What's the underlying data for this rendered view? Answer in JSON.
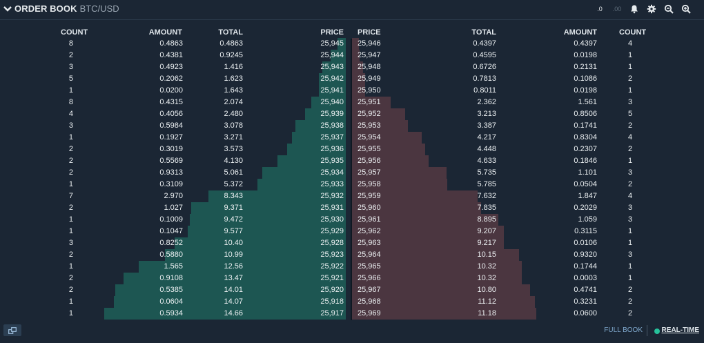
{
  "header": {
    "title": "ORDER BOOK",
    "pair": "BTC/USD",
    "tools": [
      {
        "name": "decrease-precision-button",
        "label": ".0"
      },
      {
        "name": "increase-precision-button",
        "label": ".00"
      },
      {
        "name": "bell-icon"
      },
      {
        "name": "gear-icon"
      },
      {
        "name": "zoom-out-icon"
      },
      {
        "name": "zoom-in-icon"
      }
    ]
  },
  "columns": {
    "bids": {
      "count": "COUNT",
      "amount": "AMOUNT",
      "total": "TOTAL",
      "price": "PRICE"
    },
    "asks": {
      "price": "PRICE",
      "total": "TOTAL",
      "amount": "AMOUNT",
      "count": "COUNT"
    }
  },
  "colors": {
    "bid_bar": "#1d5652",
    "ask_bar": "#4b3640",
    "background": "#1b2634"
  },
  "bids": [
    {
      "count": "8",
      "amount": "0.4863",
      "total": "0.4863",
      "price": "25,945"
    },
    {
      "count": "2",
      "amount": "0.4381",
      "total": "0.9245",
      "price": "25,944"
    },
    {
      "count": "3",
      "amount": "0.4923",
      "total": "1.416",
      "price": "25,943"
    },
    {
      "count": "5",
      "amount": "0.2062",
      "total": "1.623",
      "price": "25,942"
    },
    {
      "count": "1",
      "amount": "0.0200",
      "total": "1.643",
      "price": "25,941"
    },
    {
      "count": "8",
      "amount": "0.4315",
      "total": "2.074",
      "price": "25,940"
    },
    {
      "count": "4",
      "amount": "0.4056",
      "total": "2.480",
      "price": "25,939"
    },
    {
      "count": "3",
      "amount": "0.5984",
      "total": "3.078",
      "price": "25,938"
    },
    {
      "count": "1",
      "amount": "0.1927",
      "total": "3.271",
      "price": "25,937"
    },
    {
      "count": "2",
      "amount": "0.3019",
      "total": "3.573",
      "price": "25,936"
    },
    {
      "count": "2",
      "amount": "0.5569",
      "total": "4.130",
      "price": "25,935"
    },
    {
      "count": "2",
      "amount": "0.9313",
      "total": "5.061",
      "price": "25,934"
    },
    {
      "count": "1",
      "amount": "0.3109",
      "total": "5.372",
      "price": "25,933"
    },
    {
      "count": "7",
      "amount": "2.970",
      "total": "8.343",
      "price": "25,932"
    },
    {
      "count": "2",
      "amount": "1.027",
      "total": "9.371",
      "price": "25,931"
    },
    {
      "count": "1",
      "amount": "0.1009",
      "total": "9.472",
      "price": "25,930"
    },
    {
      "count": "1",
      "amount": "0.1047",
      "total": "9.577",
      "price": "25,929"
    },
    {
      "count": "3",
      "amount": "0.8252",
      "total": "10.40",
      "price": "25,928"
    },
    {
      "count": "2",
      "amount": "0.5880",
      "total": "10.99",
      "price": "25,923"
    },
    {
      "count": "1",
      "amount": "1.565",
      "total": "12.56",
      "price": "25,922"
    },
    {
      "count": "2",
      "amount": "0.9108",
      "total": "13.47",
      "price": "25,921"
    },
    {
      "count": "2",
      "amount": "0.5385",
      "total": "14.01",
      "price": "25,920"
    },
    {
      "count": "1",
      "amount": "0.0604",
      "total": "14.07",
      "price": "25,918"
    },
    {
      "count": "1",
      "amount": "0.5934",
      "total": "14.66",
      "price": "25,917"
    }
  ],
  "asks": [
    {
      "price": "25,946",
      "total": "0.4397",
      "amount": "0.4397",
      "count": "4"
    },
    {
      "price": "25,947",
      "total": "0.4595",
      "amount": "0.0198",
      "count": "1"
    },
    {
      "price": "25,948",
      "total": "0.6726",
      "amount": "0.2131",
      "count": "1"
    },
    {
      "price": "25,949",
      "total": "0.7813",
      "amount": "0.1086",
      "count": "2"
    },
    {
      "price": "25,950",
      "total": "0.8011",
      "amount": "0.0198",
      "count": "1"
    },
    {
      "price": "25,951",
      "total": "2.362",
      "amount": "1.561",
      "count": "3"
    },
    {
      "price": "25,952",
      "total": "3.213",
      "amount": "0.8506",
      "count": "5"
    },
    {
      "price": "25,953",
      "total": "3.387",
      "amount": "0.1741",
      "count": "2"
    },
    {
      "price": "25,954",
      "total": "4.217",
      "amount": "0.8304",
      "count": "4"
    },
    {
      "price": "25,955",
      "total": "4.448",
      "amount": "0.2307",
      "count": "2"
    },
    {
      "price": "25,956",
      "total": "4.633",
      "amount": "0.1846",
      "count": "1"
    },
    {
      "price": "25,957",
      "total": "5.735",
      "amount": "1.101",
      "count": "3"
    },
    {
      "price": "25,958",
      "total": "5.785",
      "amount": "0.0504",
      "count": "2"
    },
    {
      "price": "25,959",
      "total": "7.632",
      "amount": "1.847",
      "count": "4"
    },
    {
      "price": "25,960",
      "total": "7.835",
      "amount": "0.2029",
      "count": "3"
    },
    {
      "price": "25,961",
      "total": "8.895",
      "amount": "1.059",
      "count": "3"
    },
    {
      "price": "25,962",
      "total": "9.207",
      "amount": "0.3115",
      "count": "1"
    },
    {
      "price": "25,963",
      "total": "9.217",
      "amount": "0.0106",
      "count": "1"
    },
    {
      "price": "25,964",
      "total": "10.15",
      "amount": "0.9320",
      "count": "3"
    },
    {
      "price": "25,965",
      "total": "10.32",
      "amount": "0.1744",
      "count": "1"
    },
    {
      "price": "25,966",
      "total": "10.32",
      "amount": "0.0003",
      "count": "1"
    },
    {
      "price": "25,967",
      "total": "10.80",
      "amount": "0.4741",
      "count": "2"
    },
    {
      "price": "25,968",
      "total": "11.12",
      "amount": "0.3231",
      "count": "2"
    },
    {
      "price": "25,969",
      "total": "11.18",
      "amount": "0.0600",
      "count": "2"
    }
  ],
  "footer": {
    "full_book": "FULL BOOK",
    "realtime": "REAL-TIME"
  }
}
